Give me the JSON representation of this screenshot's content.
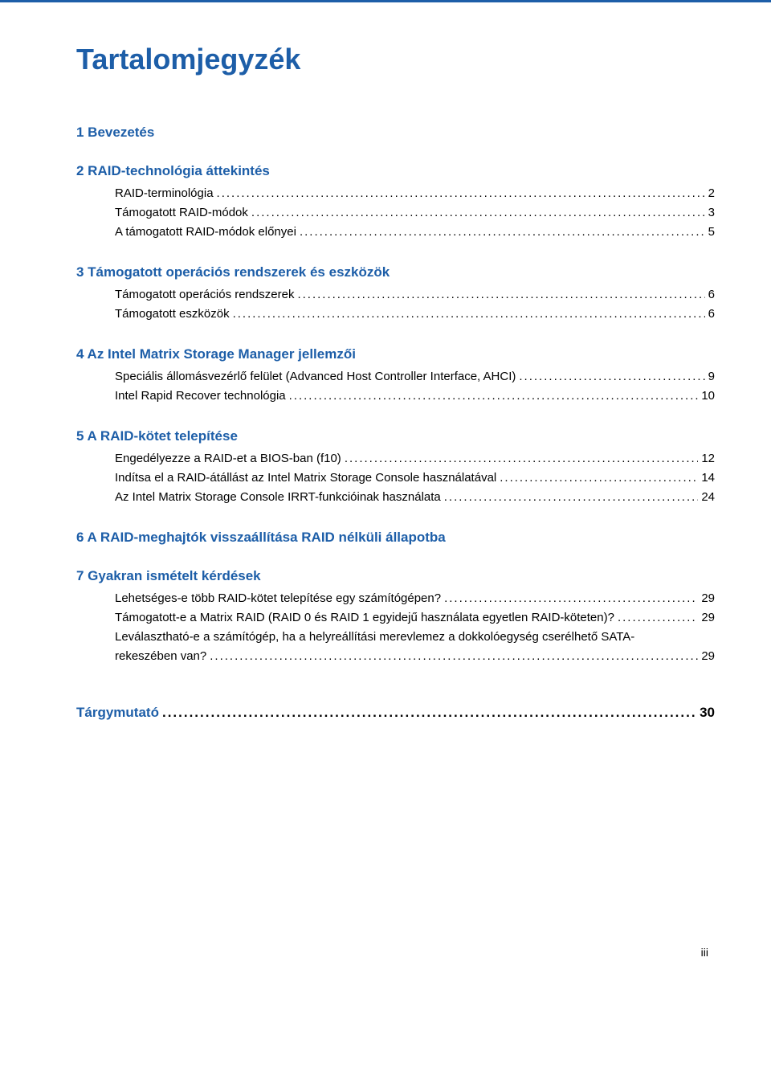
{
  "colors": {
    "accent": "#1d5ea8",
    "text": "#000000",
    "background": "#ffffff"
  },
  "typography": {
    "title_fontsize_pt": 27,
    "section_fontsize_pt": 12,
    "body_fontsize_pt": 11
  },
  "title": "Tartalomjegyzék",
  "sections": [
    {
      "num": "1",
      "label": "Bevezetés",
      "entries": []
    },
    {
      "num": "2",
      "label": "RAID-technológia áttekintés",
      "entries": [
        {
          "label": "RAID-terminológia",
          "page": "2",
          "indent": 0
        },
        {
          "label": "Támogatott RAID-módok",
          "page": "3",
          "indent": 0
        },
        {
          "label": "A támogatott RAID-módok előnyei",
          "page": "5",
          "indent": 0
        }
      ]
    },
    {
      "num": "3",
      "label": "Támogatott operációs rendszerek és eszközök",
      "entries": [
        {
          "label": "Támogatott operációs rendszerek",
          "page": "6",
          "indent": 0
        },
        {
          "label": "Támogatott eszközök",
          "page": "6",
          "indent": 0
        }
      ]
    },
    {
      "num": "4",
      "label": "Az Intel Matrix Storage Manager jellemzői",
      "entries": [
        {
          "label": "Speciális állomásvezérlő felület (Advanced Host Controller Interface, AHCI)",
          "page": "9",
          "indent": 0
        },
        {
          "label": "Intel Rapid Recover technológia",
          "page": "10",
          "indent": 0
        }
      ]
    },
    {
      "num": "5",
      "label": "A RAID-kötet telepítése",
      "entries": [
        {
          "label": "Engedélyezze a RAID-et a BIOS-ban (f10)",
          "page": "12",
          "indent": 0
        },
        {
          "label": "Indítsa el a RAID-átállást az Intel Matrix Storage Console használatával",
          "page": "14",
          "indent": 0
        },
        {
          "label": "Az Intel Matrix Storage Console IRRT-funkcióinak használata",
          "page": "24",
          "indent": 0
        }
      ]
    },
    {
      "num": "6",
      "label": "A RAID-meghajtók visszaállítása RAID nélküli állapotba",
      "entries": []
    },
    {
      "num": "7",
      "label": "Gyakran ismételt kérdések",
      "entries": [
        {
          "label": "Lehetséges-e több RAID-kötet telepítése egy számítógépen?",
          "page": "29",
          "indent": 0
        },
        {
          "label": "Támogatott-e a Matrix RAID (RAID 0 és RAID 1 egyidejű használata egyetlen RAID-köteten)?",
          "page": "29",
          "indent": 0
        },
        {
          "label": "Leválasztható-e a számítógép, ha a helyreállítási merevlemez a dokkolóegység cserélhető SATA-rekeszében van?",
          "page": "29",
          "indent": 0,
          "wrap": true
        }
      ]
    }
  ],
  "index": {
    "label": "Tárgymutató",
    "page": "30"
  },
  "footer": "iii"
}
